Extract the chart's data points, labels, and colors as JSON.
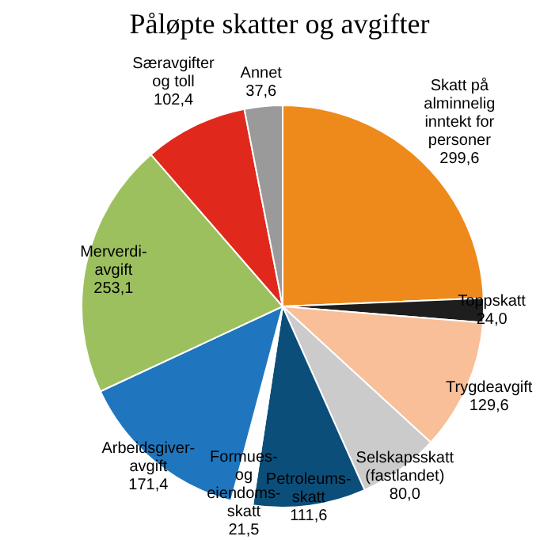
{
  "chart_data": {
    "type": "pie",
    "title": "Påløpte skatter og avgifter",
    "categories": [
      "Skatt på\nalminnelig\ninntekt for\npersoner",
      "Toppskatt",
      "Trygdeavgift",
      "Selskapsskatt\n(fastlandet)",
      "Petroleums-\nskatt",
      "Formues-\nog\neiendoms-\nskatt",
      "Arbeidsgiver-\navgift",
      "Merverdi-\navgift",
      "Særavgifter\nog toll",
      "Annet"
    ],
    "values": [
      299.6,
      24.0,
      129.6,
      80.0,
      111.6,
      21.5,
      171.4,
      253.1,
      102.4,
      37.6
    ],
    "value_labels": [
      "299,6",
      "24,0",
      "129,6",
      "80,0",
      "111,6",
      "21,5",
      "171,4",
      "253,1",
      "102,4",
      "37,6"
    ],
    "colors": [
      "#ee8a1c",
      "#1e1e1e",
      "#f8bf98",
      "#cbcbcb",
      "#0b4e7a",
      "#ffffff",
      "#1f76be",
      "#9dc05e",
      "#e0291c",
      "#9a9a9a"
    ],
    "legend": false
  }
}
